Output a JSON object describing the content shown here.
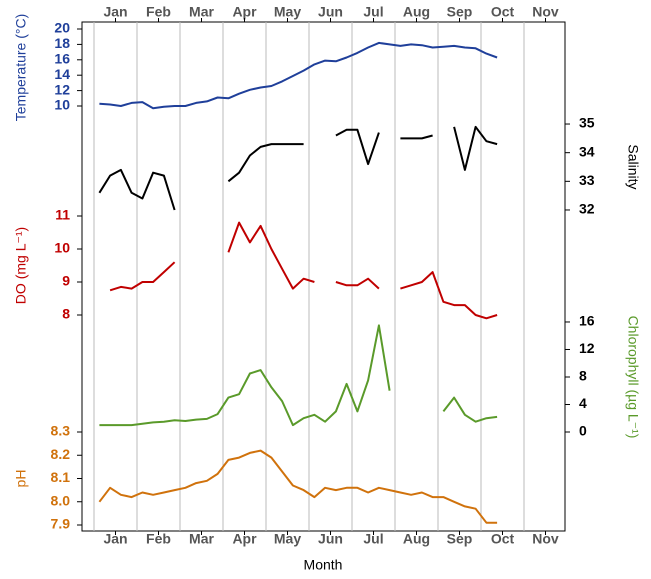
{
  "chart_data": {
    "type": "line",
    "x_label": "Month",
    "categories": [
      "Jan",
      "Feb",
      "Mar",
      "Apr",
      "May",
      "Jun",
      "Jul",
      "Aug",
      "Sep",
      "Oct",
      "Nov"
    ],
    "grid": true,
    "series": [
      {
        "name": "Temperature (°C)",
        "color": "#1f3f9a",
        "axis": "left",
        "ylim": [
          9.5,
          20.5
        ],
        "yticks": [
          10,
          12,
          14,
          16,
          18,
          20
        ],
        "values": [
          [
            10.3,
            10.2,
            10.0,
            10.4
          ],
          [
            10.5,
            9.7,
            9.9,
            10.0
          ],
          [
            10.0,
            10.4,
            10.6,
            11.1
          ],
          [
            11.0,
            11.6,
            12.1,
            12.4
          ],
          [
            12.6,
            13.2,
            13.9,
            14.6
          ],
          [
            15.4,
            15.9,
            15.8,
            16.3
          ],
          [
            16.9,
            17.6,
            18.2,
            18.0
          ],
          [
            17.8,
            18.0,
            17.9,
            17.6
          ],
          [
            17.7,
            17.8,
            17.6,
            17.5
          ],
          [
            16.8,
            16.3,
            null,
            null
          ],
          [
            null,
            null,
            null,
            null
          ]
        ]
      },
      {
        "name": "Salinity",
        "color": "#000000",
        "axis": "right",
        "ylim": [
          31.5,
          35.5
        ],
        "yticks": [
          32,
          33,
          34,
          35
        ],
        "values": [
          [
            32.6,
            33.2,
            33.4,
            32.6
          ],
          [
            32.4,
            33.3,
            33.2,
            32.0
          ],
          [
            null,
            null,
            null,
            null
          ],
          [
            33.0,
            33.3,
            33.9,
            34.2
          ],
          [
            34.3,
            34.3,
            34.3,
            34.3
          ],
          [
            null,
            null,
            34.6,
            34.8
          ],
          [
            34.8,
            33.6,
            34.7,
            null
          ],
          [
            34.5,
            34.5,
            34.5,
            34.6
          ],
          [
            null,
            34.9,
            33.4,
            34.9
          ],
          [
            34.4,
            34.3,
            null,
            null
          ],
          [
            null,
            null,
            null,
            null
          ]
        ]
      },
      {
        "name": "DO (mg L⁻¹)",
        "color": "#c00000",
        "axis": "left",
        "ylim": [
          7.5,
          11.5
        ],
        "yticks": [
          8,
          9,
          10,
          11
        ],
        "values": [
          [
            null,
            8.75,
            8.85,
            8.8
          ],
          [
            9.0,
            9.0,
            9.3,
            9.6
          ],
          [
            null,
            null,
            null,
            null
          ],
          [
            9.9,
            10.8,
            10.2,
            10.7
          ],
          [
            10.0,
            9.4,
            8.8,
            9.1
          ],
          [
            9.0,
            null,
            9.0,
            8.9
          ],
          [
            8.9,
            9.1,
            8.8,
            null
          ],
          [
            8.8,
            8.9,
            9.0,
            9.3
          ],
          [
            8.4,
            8.3,
            8.3,
            8.0
          ],
          [
            7.9,
            8.0,
            null,
            null
          ],
          [
            null,
            null,
            null,
            null
          ]
        ]
      },
      {
        "name": "Chlorophyll (µg L⁻¹)",
        "color": "#5a9a2a",
        "axis": "right",
        "ylim": [
          -2,
          17
        ],
        "yticks": [
          0,
          4,
          8,
          12,
          16
        ],
        "values": [
          [
            1.0,
            1.0,
            1.0,
            1.0
          ],
          [
            1.2,
            1.4,
            1.5,
            1.7
          ],
          [
            1.6,
            1.8,
            1.9,
            2.6
          ],
          [
            5.0,
            5.5,
            8.5,
            9.0
          ],
          [
            6.5,
            4.5,
            1.0,
            2.0
          ],
          [
            2.5,
            1.5,
            3.0,
            7.0
          ],
          [
            3.0,
            7.5,
            15.5,
            6.0
          ],
          [
            null,
            null,
            null,
            null
          ],
          [
            3.0,
            5.0,
            2.5,
            1.5
          ],
          [
            2.0,
            2.2,
            null,
            null
          ],
          [
            null,
            null,
            null,
            null
          ]
        ]
      },
      {
        "name": "pH",
        "color": "#d0720c",
        "axis": "left",
        "ylim": [
          7.88,
          8.32
        ],
        "yticks": [
          {
            "value": 7.9,
            "label": "7.9"
          },
          {
            "value": 8,
            "label": "8.0"
          },
          8.1,
          8.2,
          8.3
        ],
        "values": [
          [
            8.0,
            8.06,
            8.03,
            8.02
          ],
          [
            8.04,
            8.03,
            8.04,
            8.05
          ],
          [
            8.06,
            8.08,
            8.09,
            8.12
          ],
          [
            8.18,
            8.19,
            8.21,
            8.22
          ],
          [
            8.19,
            8.13,
            8.07,
            8.05
          ],
          [
            8.02,
            8.06,
            8.05,
            8.06
          ],
          [
            8.06,
            8.04,
            8.06,
            8.05
          ],
          [
            8.04,
            8.03,
            8.04,
            8.02
          ],
          [
            8.02,
            8.0,
            7.98,
            7.97
          ],
          [
            7.91,
            7.91,
            null,
            null
          ],
          [
            null,
            null,
            null,
            null
          ]
        ]
      }
    ]
  }
}
